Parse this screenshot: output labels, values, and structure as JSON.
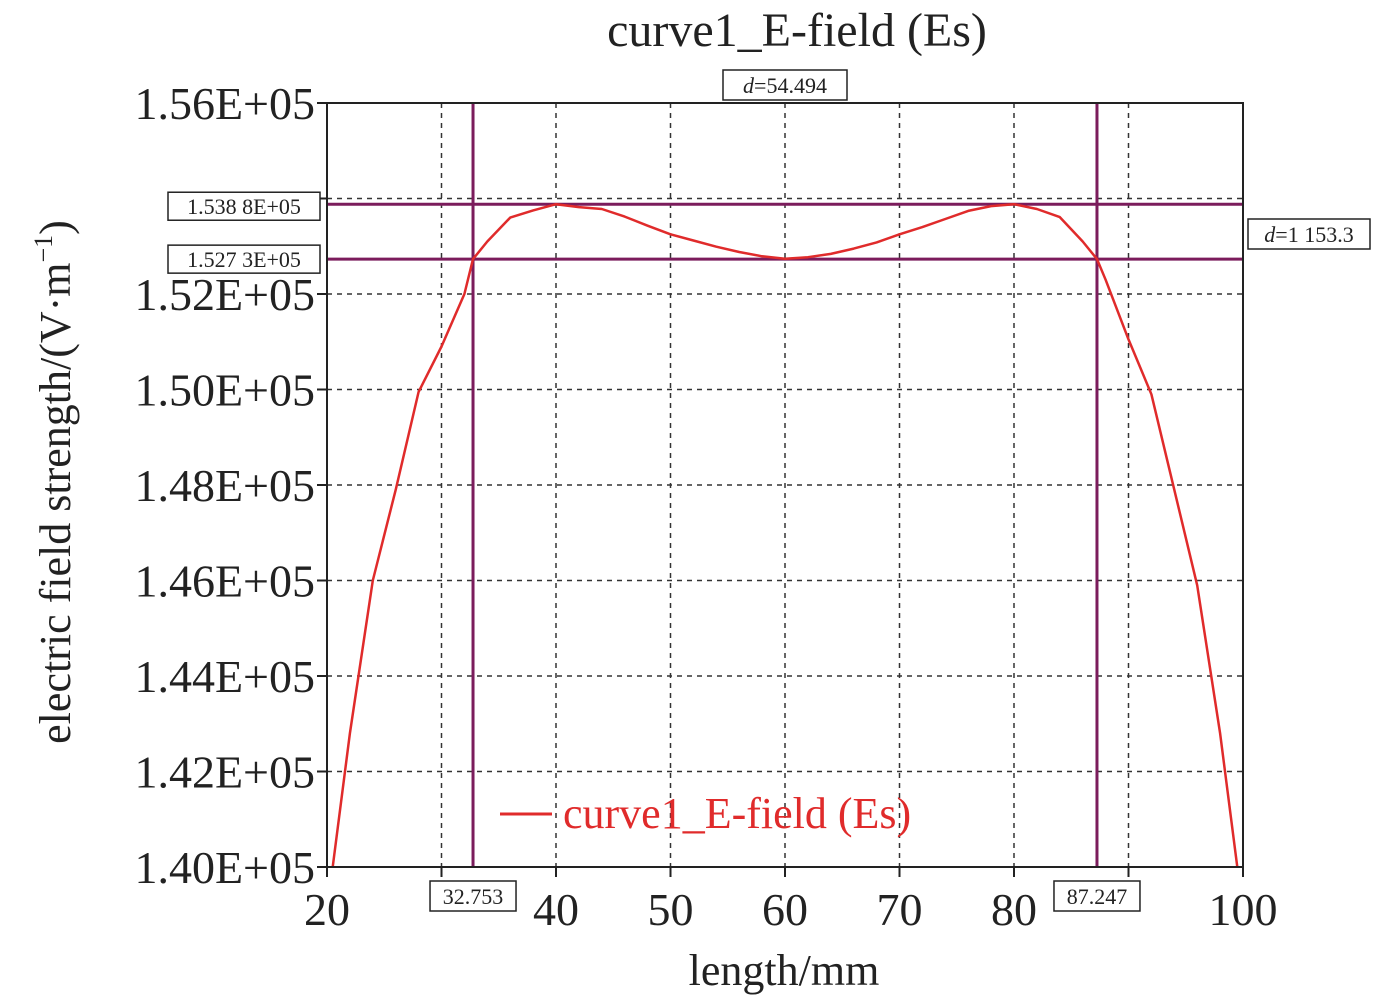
{
  "chart_data": {
    "type": "line",
    "title": "curve1_E-field (Es)",
    "xlabel": "length/mm",
    "ylabel_main": "electric field strength/(V·m",
    "ylabel_sup": "−1",
    "ylabel_close": ")",
    "xlim": [
      20,
      100
    ],
    "ylim": [
      140000,
      156000
    ],
    "x_ticks": [
      20,
      30,
      40,
      50,
      60,
      70,
      80,
      90,
      100
    ],
    "x_tick_labels": [
      "20",
      "",
      "40",
      "50",
      "60",
      "70",
      "80",
      "",
      "100"
    ],
    "y_ticks": [
      140000,
      142000,
      144000,
      146000,
      148000,
      150000,
      152000,
      154000,
      156000
    ],
    "y_tick_labels": [
      "1.40E+05",
      "1.42E+05",
      "1.44E+05",
      "1.46E+05",
      "1.48E+05",
      "1.50E+05",
      "1.52E+05",
      "",
      "1.56E+05"
    ],
    "grid": true,
    "series": [
      {
        "name": "curve1_E-field (Es)",
        "color": "#e02b2b",
        "x": [
          20.5,
          22,
          24,
          26,
          28,
          30,
          32,
          32.753,
          34,
          36,
          38,
          40,
          42,
          44,
          46,
          48,
          50,
          52,
          54,
          56,
          58,
          60,
          62,
          64,
          66,
          68,
          70,
          72,
          74,
          76,
          78,
          80,
          82,
          84,
          86,
          87.247,
          88,
          90,
          92,
          94,
          96,
          98,
          99.5
        ],
        "y": [
          140000,
          142800,
          146000,
          147900,
          149950,
          150900,
          152000,
          152730,
          153100,
          153600,
          153750,
          153880,
          153820,
          153780,
          153620,
          153430,
          153250,
          153120,
          152990,
          152880,
          152790,
          152740,
          152770,
          152840,
          152950,
          153080,
          153250,
          153400,
          153570,
          153740,
          153840,
          153880,
          153780,
          153610,
          153100,
          152730,
          152300,
          151050,
          149900,
          147900,
          145900,
          142800,
          140000
        ]
      }
    ],
    "legend_position": "bottom-center",
    "markers": {
      "vertical": [
        32.753,
        87.247
      ],
      "vertical_labels": [
        "32.753",
        "87.247"
      ],
      "horizontal": [
        153880,
        152730
      ],
      "horizontal_labels": [
        "1.538 8E+05",
        "1.527 3E+05"
      ],
      "marker_color": "#7b1c5c",
      "delta_x_italic": "d",
      "delta_x_text": "=54.494",
      "delta_y_italic": "d",
      "delta_y_text": "=1 153.3"
    }
  }
}
